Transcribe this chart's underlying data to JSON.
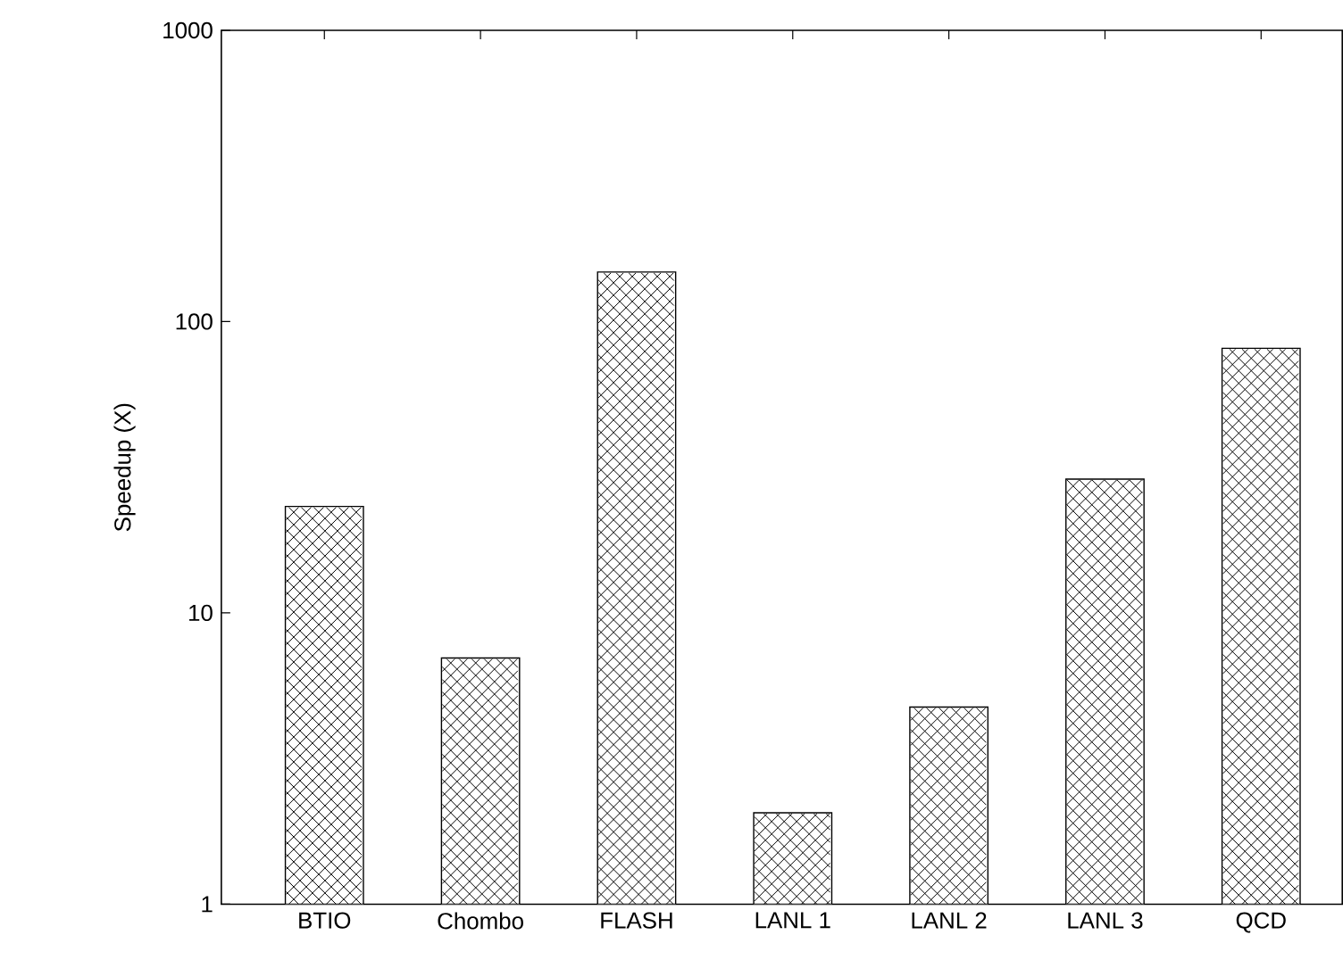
{
  "chart_data": {
    "type": "bar",
    "ylabel": "Speedup (X)",
    "categories": [
      "BTIO",
      "Chombo",
      "FLASH",
      "LANL 1",
      "LANL 2",
      "LANL 3",
      "QCD"
    ],
    "values": [
      23.2,
      7.0,
      148,
      2.06,
      4.75,
      28.8,
      81
    ],
    "color": "#ffffff",
    "log": "y",
    "ylim": [
      1,
      1000
    ],
    "yticks": [
      1,
      10,
      100,
      1000
    ]
  }
}
